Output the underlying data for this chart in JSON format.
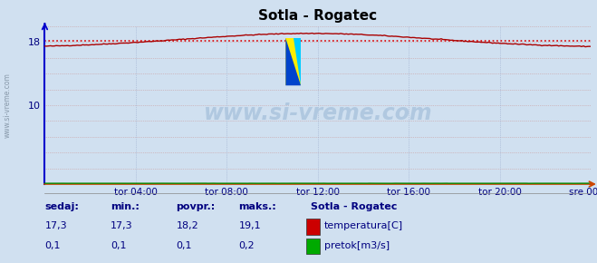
{
  "title": "Sotla - Rogatec",
  "background_color": "#d0e0f0",
  "plot_bg_color": "#d0e0f0",
  "grid_color_h": "#cc9999",
  "grid_color_v": "#99aacc",
  "ylim": [
    0,
    20
  ],
  "xlim": [
    0,
    288
  ],
  "yticks": [
    10,
    18
  ],
  "xticklabels": [
    "tor 04:00",
    "tor 08:00",
    "tor 12:00",
    "tor 16:00",
    "tor 20:00",
    "sre 00:00"
  ],
  "xtick_positions": [
    48,
    96,
    144,
    192,
    240,
    288
  ],
  "avg_line_value": 18.2,
  "avg_line_color": "#dd0000",
  "temp_line_color": "#aa0000",
  "flow_line_color": "#008800",
  "watermark_text": "www.si-vreme.com",
  "watermark_color": "#b0c8e0",
  "sidebar_text": "www.si-vreme.com",
  "legend_title": "Sotla - Rogatec",
  "legend_items": [
    "temperatura[C]",
    "pretok[m3/s]"
  ],
  "legend_colors": [
    "#cc0000",
    "#00aa00"
  ],
  "stats_headers": [
    "sedaj:",
    "min.:",
    "povpr.:",
    "maks.:"
  ],
  "stats_temp": [
    "17,3",
    "17,3",
    "18,2",
    "19,1"
  ],
  "stats_flow": [
    "0,1",
    "0,1",
    "0,1",
    "0,2"
  ],
  "stats_color": "#000080",
  "n_points": 289,
  "left_spine_color": "#0000cc",
  "bottom_spine_color": "#cc4400",
  "arrow_color": "#cc4400"
}
